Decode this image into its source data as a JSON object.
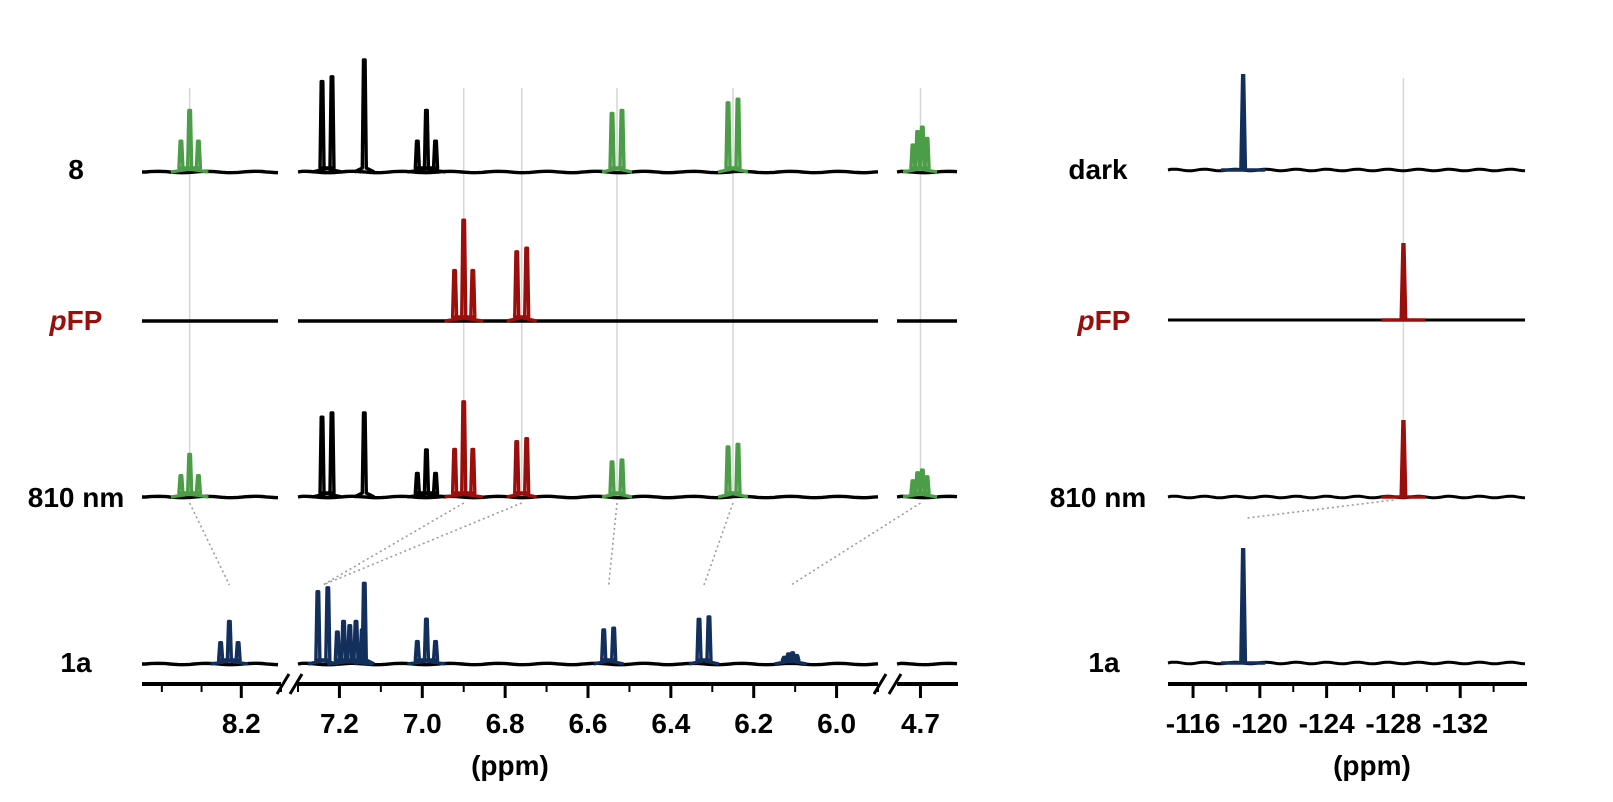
{
  "colors": {
    "spectrum": "#000000",
    "product_8": "#4b9e47",
    "pFP": "#9a0f0c",
    "compound_1a": "#132f5c",
    "guide": "#d6d6d6",
    "connector": "#9c9c9c"
  },
  "row_labels": {
    "r0": {
      "prefix": "",
      "rest": "8"
    },
    "r1": {
      "prefix": "p",
      "rest": "FP"
    },
    "r2": {
      "prefix": "",
      "rest": "810 nm"
    },
    "r3": {
      "prefix": "",
      "rest": "1a"
    }
  },
  "f_row_labels": {
    "r0": {
      "prefix": "",
      "rest": "dark"
    },
    "r1": {
      "prefix": "p",
      "rest": "FP"
    },
    "r2": {
      "prefix": "",
      "rest": "810 nm"
    },
    "r3": {
      "prefix": "",
      "rest": "1a"
    }
  },
  "chart_data": [
    {
      "type": "line",
      "panel": "1H NMR",
      "xlabel": "(ppm)",
      "x_axis": "ppm, descending, broken at 8.1–7.3 and 5.9–4.75",
      "x_ticks": [
        "8.2",
        "7.2",
        "7.0",
        "6.8",
        "6.6",
        "6.4",
        "6.2",
        "6.0",
        "4.7"
      ],
      "x_tick_values": [
        8.2,
        7.2,
        7.0,
        6.8,
        6.6,
        6.4,
        6.2,
        6.0,
        4.7
      ],
      "segments": [
        [
          8.45,
          8.1
        ],
        [
          7.3,
          5.9
        ],
        [
          4.75,
          4.62
        ]
      ],
      "rows": [
        "8",
        "pFP",
        "810 nm",
        "1a"
      ],
      "peaks": {
        "8": [
          {
            "ppm": 8.33,
            "mult": "t",
            "intensity": 0.55,
            "group": "8"
          },
          {
            "ppm": 7.23,
            "mult": "d",
            "intensity": 0.85,
            "group": "none"
          },
          {
            "ppm": 7.14,
            "mult": "s",
            "intensity": 1.0,
            "group": "none"
          },
          {
            "ppm": 6.99,
            "mult": "t",
            "intensity": 0.55,
            "group": "none"
          },
          {
            "ppm": 6.53,
            "mult": "d",
            "intensity": 0.55,
            "group": "8"
          },
          {
            "ppm": 6.25,
            "mult": "d",
            "intensity": 0.65,
            "group": "8"
          },
          {
            "ppm": 4.7,
            "mult": "q",
            "intensity": 0.4,
            "group": "8"
          }
        ],
        "pFP": [
          {
            "ppm": 6.9,
            "mult": "t",
            "intensity": 0.9,
            "group": "pFP"
          },
          {
            "ppm": 6.76,
            "mult": "d",
            "intensity": 0.65,
            "group": "pFP"
          }
        ],
        "810 nm": [
          {
            "ppm": 8.33,
            "mult": "t",
            "intensity": 0.38,
            "group": "8"
          },
          {
            "ppm": 7.23,
            "mult": "d",
            "intensity": 0.75,
            "group": "none"
          },
          {
            "ppm": 7.14,
            "mult": "s",
            "intensity": 0.75,
            "group": "none"
          },
          {
            "ppm": 6.99,
            "mult": "t",
            "intensity": 0.42,
            "group": "none"
          },
          {
            "ppm": 6.9,
            "mult": "t",
            "intensity": 0.85,
            "group": "pFP"
          },
          {
            "ppm": 6.76,
            "mult": "d",
            "intensity": 0.52,
            "group": "pFP"
          },
          {
            "ppm": 6.53,
            "mult": "d",
            "intensity": 0.33,
            "group": "8"
          },
          {
            "ppm": 6.25,
            "mult": "d",
            "intensity": 0.47,
            "group": "8"
          },
          {
            "ppm": 4.7,
            "mult": "q",
            "intensity": 0.24,
            "group": "8"
          }
        ],
        "1a": [
          {
            "ppm": 8.23,
            "mult": "t",
            "intensity": 0.38,
            "group": "1a"
          },
          {
            "ppm": 7.24,
            "mult": "d",
            "intensity": 0.68,
            "group": "1a"
          },
          {
            "ppm": 7.18,
            "mult": "m",
            "intensity": 0.38,
            "group": "1a"
          },
          {
            "ppm": 7.14,
            "mult": "s",
            "intensity": 0.72,
            "group": "1a"
          },
          {
            "ppm": 6.99,
            "mult": "t",
            "intensity": 0.4,
            "group": "1a"
          },
          {
            "ppm": 6.55,
            "mult": "d",
            "intensity": 0.32,
            "group": "1a"
          },
          {
            "ppm": 6.32,
            "mult": "d",
            "intensity": 0.42,
            "group": "1a"
          },
          {
            "ppm": 6.11,
            "mult": "q",
            "intensity": 0.1,
            "group": "1a"
          }
        ]
      },
      "correlations": [
        [
          8.33,
          8.23
        ],
        [
          6.9,
          7.24
        ],
        [
          6.76,
          7.24
        ],
        [
          6.53,
          6.55
        ],
        [
          6.25,
          6.32
        ],
        [
          4.7,
          6.11
        ]
      ]
    },
    {
      "type": "line",
      "panel": "19F NMR",
      "xlabel": "(ppm)",
      "xlim": [
        -114.5,
        -136
      ],
      "x_ticks": [
        "-116",
        "-120",
        "-124",
        "-128",
        "-132"
      ],
      "x_tick_values": [
        -116,
        -120,
        -124,
        -128,
        -132
      ],
      "rows": [
        "dark",
        "pFP",
        "810 nm",
        "1a"
      ],
      "peaks": {
        "dark": [
          {
            "ppm": -119.0,
            "intensity": 1.0,
            "group": "1a"
          }
        ],
        "pFP": [
          {
            "ppm": -128.6,
            "intensity": 0.8,
            "group": "pFP"
          }
        ],
        "810 nm": [
          {
            "ppm": -128.6,
            "intensity": 0.8,
            "group": "pFP"
          }
        ],
        "1a": [
          {
            "ppm": -119.0,
            "intensity": 1.2,
            "group": "1a"
          }
        ]
      },
      "correlations": [
        [
          -128.6,
          -119.0
        ]
      ]
    }
  ]
}
